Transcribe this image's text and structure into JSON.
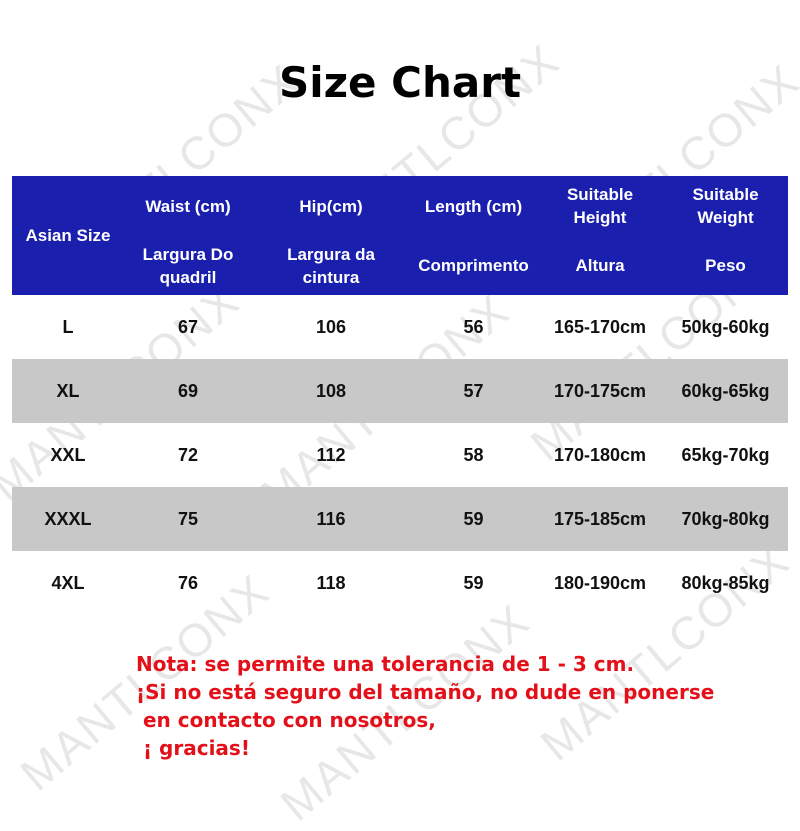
{
  "title": "Size Chart",
  "watermark": "MANTLCONX",
  "colors": {
    "header_bg": "#1a1fad",
    "alt_row_bg": "#c8c8c8",
    "note_text": "#e3101a"
  },
  "table": {
    "headers": [
      {
        "top": "Asian Size",
        "bottom": ""
      },
      {
        "top": "Waist (cm)",
        "bottom": "Largura Do quadril"
      },
      {
        "top": "Hip(cm)",
        "bottom": "Largura da cintura"
      },
      {
        "top": "Length (cm)",
        "bottom": "Comprimento"
      },
      {
        "top": "Suitable Height",
        "bottom": "Altura"
      },
      {
        "top": "Suitable Weight",
        "bottom": "Peso"
      }
    ],
    "rows": [
      [
        "L",
        "67",
        "106",
        "56",
        "165-170cm",
        "50kg-60kg"
      ],
      [
        "XL",
        "69",
        "108",
        "57",
        "170-175cm",
        "60kg-65kg"
      ],
      [
        "XXL",
        "72",
        "112",
        "58",
        "170-180cm",
        "65kg-70kg"
      ],
      [
        "XXXL",
        "75",
        "116",
        "59",
        "175-185cm",
        "70kg-80kg"
      ],
      [
        "4XL",
        "76",
        "118",
        "59",
        "180-190cm",
        "80kg-85kg"
      ]
    ]
  },
  "note": [
    "Nota: se permite una tolerancia de 1 - 3 cm.",
    "¡Si no está seguro del tamaño, no dude en ponerse",
    " en contacto con nosotros,",
    " ¡ gracias!"
  ]
}
